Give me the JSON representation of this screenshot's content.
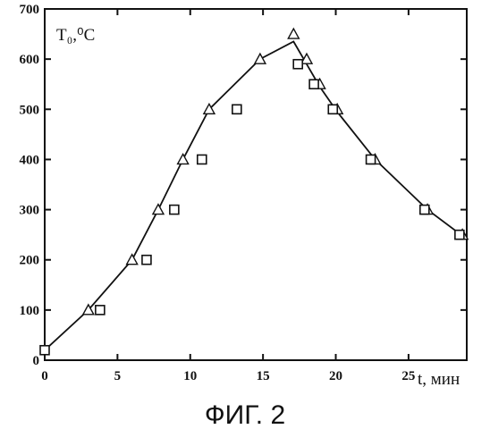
{
  "figure_caption": "ФИГ. 2",
  "chart_data": {
    "type": "scatter",
    "ylabel": "T₀,⁰C",
    "xlabel": "t, мин",
    "xlim": [
      0,
      29
    ],
    "ylim": [
      0,
      700
    ],
    "xticks": [
      0,
      5,
      10,
      15,
      20,
      25
    ],
    "yticks": [
      0,
      100,
      200,
      300,
      400,
      500,
      600,
      700
    ],
    "grid": false,
    "series": [
      {
        "marker": "triangle",
        "x": [
          3.0,
          6.0,
          7.8,
          9.5,
          11.3,
          14.8,
          17.1,
          18.0,
          18.9,
          20.1,
          22.7,
          26.3,
          28.7
        ],
        "y": [
          100,
          200,
          300,
          400,
          500,
          600,
          650,
          600,
          550,
          500,
          400,
          300,
          250
        ]
      },
      {
        "marker": "square",
        "x": [
          0.0,
          3.8,
          7.0,
          8.9,
          10.8,
          13.2,
          17.4,
          18.5,
          19.8,
          22.4,
          26.1,
          28.5
        ],
        "y": [
          20,
          100,
          200,
          300,
          400,
          500,
          590,
          550,
          500,
          400,
          300,
          250
        ]
      },
      {
        "marker": "line",
        "x": [
          0,
          3,
          6,
          7.8,
          9.5,
          11.3,
          14.8,
          17.1,
          18.0,
          18.9,
          20.1,
          22.7,
          26.3,
          28.7
        ],
        "y": [
          20,
          100,
          200,
          300,
          400,
          500,
          600,
          635,
          590,
          545,
          495,
          400,
          300,
          248
        ]
      }
    ]
  }
}
